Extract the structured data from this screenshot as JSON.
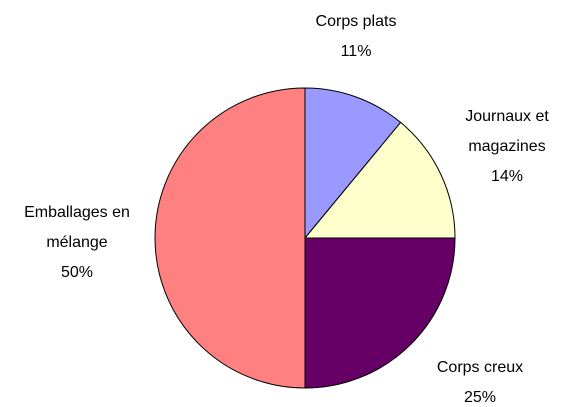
{
  "chart_data": {
    "type": "pie",
    "categories": [
      "Corps plats",
      "Journaux et magazines",
      "Corps creux",
      "Emballages en mélange"
    ],
    "values": [
      11,
      14,
      25,
      50
    ],
    "value_labels": [
      "11%",
      "14%",
      "25%",
      "50%"
    ],
    "colors": [
      "#9999ff",
      "#ffffcc",
      "#660066",
      "#ff8080"
    ]
  }
}
